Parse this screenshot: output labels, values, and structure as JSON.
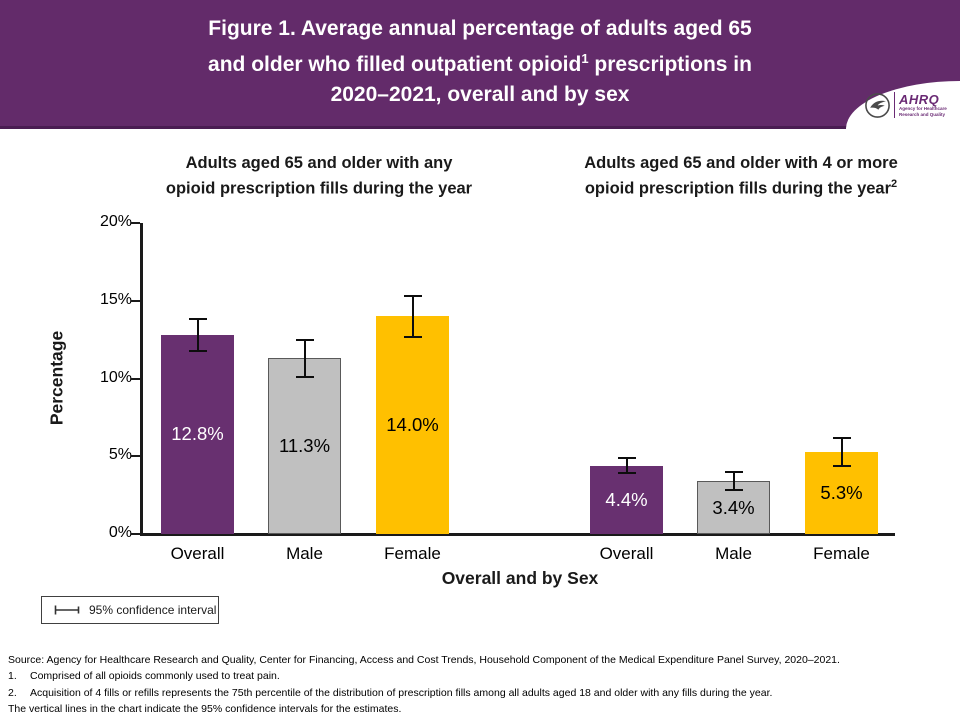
{
  "header": {
    "title": {
      "line1": "Figure 1. Average annual percentage of adults aged 65",
      "line2_pre": "and older who filled outpatient opioid",
      "line2_sup": "1",
      "line2_post": " prescriptions in",
      "line3": "2020–2021, overall and by sex"
    },
    "logo": {
      "acronym": "AHRQ",
      "tagline1": "Agency for Healthcare",
      "tagline2": "Research and Quality"
    }
  },
  "chart_data": {
    "type": "bar",
    "title": "Figure 1. Average annual percentage of adults aged 65 and older who filled outpatient opioid prescriptions in 2020–2021, overall and by sex",
    "ylabel": "Percentage",
    "xlabel": "Overall and by Sex",
    "ylim": [
      0,
      20
    ],
    "yticks": [
      {
        "label": "0%",
        "value": 0
      },
      {
        "label": "5%",
        "value": 5
      },
      {
        "label": "10%",
        "value": 10
      },
      {
        "label": "15%",
        "value": 15
      },
      {
        "label": "20%",
        "value": 20
      }
    ],
    "grid": false,
    "legend_label": "95% confidence interval",
    "legend_position": "bottom-left",
    "series_styles": [
      {
        "category": "Overall",
        "fill": "#683070",
        "border": "",
        "label_color": "#ffffff"
      },
      {
        "category": "Male",
        "fill": "#c0c0c0",
        "border": "#595959",
        "label_color": "#000000"
      },
      {
        "category": "Female",
        "fill": "#ffc000",
        "border": "",
        "label_color": "#000000"
      }
    ],
    "panels": [
      {
        "title_pre": "Adults aged 65 and older with any opioid prescription fills during the year",
        "title_sup": "",
        "categories": [
          "Overall",
          "Male",
          "Female"
        ],
        "values": [
          12.8,
          11.3,
          14.0
        ],
        "value_labels": [
          "12.8%",
          "11.3%",
          "14.0%"
        ],
        "ci_halfwidth_est": [
          1.0,
          1.2,
          1.3
        ]
      },
      {
        "title_pre": "Adults aged 65 and older with 4 or more opioid prescription fills during the year",
        "title_sup": "2",
        "categories": [
          "Overall",
          "Male",
          "Female"
        ],
        "values": [
          4.4,
          3.4,
          5.3
        ],
        "value_labels": [
          "4.4%",
          "3.4%",
          "5.3%"
        ],
        "ci_halfwidth_est": [
          0.5,
          0.6,
          0.9
        ]
      }
    ]
  },
  "footer": {
    "rows": [
      {
        "num": "",
        "text": "Source: Agency for Healthcare Research and Quality, Center for Financing, Access and Cost Trends, Household Component of the Medical Expenditure Panel Survey, 2020–2021."
      },
      {
        "num": "1.",
        "text": "Comprised of all opioids commonly used to treat pain."
      },
      {
        "num": "2.",
        "text": "Acquisition of 4 fills or refills represents the 75th percentile of the distribution of prescription fills among all adults aged 18 and older with any fills during the year."
      },
      {
        "num": "",
        "text": "The vertical lines in the chart indicate the 95% confidence intervals for the estimates."
      }
    ]
  }
}
